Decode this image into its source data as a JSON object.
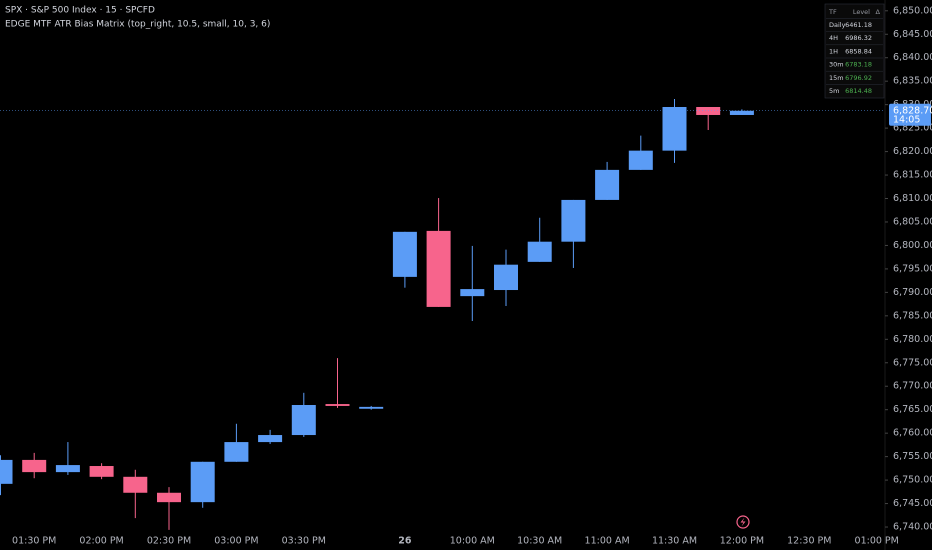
{
  "header": {
    "symbol_line": "SPX · S&P 500 Index · 15 · SPCFD",
    "indicator_line": "EDGE MTF ATR Bias Matrix (top_right, 10.5, small, 10, 3, 6)"
  },
  "chart_data": {
    "type": "candlestick",
    "categories": [
      null,
      "01:30 PM",
      null,
      "02:00 PM",
      null,
      "02:30 PM",
      null,
      "03:00 PM",
      null,
      "03:30 PM",
      null,
      null,
      "26",
      null,
      "10:00 AM",
      null,
      "10:30 AM",
      null,
      "11:00 AM",
      null,
      "11:30 AM",
      null,
      "12:00 PM",
      null,
      "12:30 PM",
      null,
      "01:00 PM"
    ],
    "open": [
      6749.2,
      6754.3,
      6751.7,
      6753.0,
      6750.7,
      6747.3,
      6745.3,
      6753.9,
      6758.1,
      6759.6,
      6766.2,
      6765.2,
      6793.3,
      6803.1,
      6789.2,
      6790.5,
      6796.5,
      6800.8,
      6809.7,
      6816.1,
      6820.2,
      6829.5,
      6827.8,
      null,
      null,
      null,
      null
    ],
    "high": [
      6755.3,
      6755.8,
      6758.1,
      6753.6,
      6752.2,
      6748.5,
      6753.9,
      6762.0,
      6760.7,
      6768.6,
      6776.0,
      6765.8,
      6802.9,
      6810.1,
      6799.9,
      6799.1,
      6805.9,
      6809.7,
      6817.8,
      6823.4,
      6831.2,
      6829.5,
      6829.0,
      null,
      null,
      null,
      null
    ],
    "low": [
      6746.8,
      6750.4,
      6751.1,
      6750.2,
      6741.9,
      6739.4,
      6744.1,
      6753.9,
      6757.7,
      6759.2,
      6765.4,
      6765.0,
      6791.0,
      6786.9,
      6783.9,
      6787.1,
      6796.5,
      6795.2,
      6809.7,
      6816.1,
      6817.6,
      6824.6,
      6827.8,
      null,
      null,
      null,
      null
    ],
    "close": [
      6754.3,
      6751.7,
      6753.2,
      6750.7,
      6747.3,
      6745.3,
      6753.9,
      6758.1,
      6759.6,
      6766.0,
      6765.8,
      6765.6,
      6802.9,
      6786.9,
      6790.7,
      6795.9,
      6800.8,
      6809.7,
      6816.1,
      6820.2,
      6829.5,
      6827.8,
      6828.7,
      null,
      null,
      null,
      null
    ],
    "up_color": "#5b9cf6",
    "down_color": "#f7648c",
    "ylim": [
      6738.3,
      6852.3
    ],
    "yticks": [
      {
        "value": 6740,
        "label": "6,740.00"
      },
      {
        "value": 6745,
        "label": "6,745.00"
      },
      {
        "value": 6750,
        "label": "6,750.00"
      },
      {
        "value": 6755,
        "label": "6,755.00"
      },
      {
        "value": 6760,
        "label": "6,760.00"
      },
      {
        "value": 6765,
        "label": "6,765.00"
      },
      {
        "value": 6770,
        "label": "6,770.00"
      },
      {
        "value": 6775,
        "label": "6,775.00"
      },
      {
        "value": 6780,
        "label": "6,780.00"
      },
      {
        "value": 6785,
        "label": "6,785.00"
      },
      {
        "value": 6790,
        "label": "6,790.00"
      },
      {
        "value": 6795,
        "label": "6,795.00"
      },
      {
        "value": 6800,
        "label": "6,800.00"
      },
      {
        "value": 6805,
        "label": "6,805.00"
      },
      {
        "value": 6810,
        "label": "6,810.00"
      },
      {
        "value": 6815,
        "label": "6,815.00"
      },
      {
        "value": 6820,
        "label": "6,820.00"
      },
      {
        "value": 6825,
        "label": "6,825.00"
      },
      {
        "value": 6830,
        "label": "6,830.00"
      },
      {
        "value": 6835,
        "label": "6,835.00"
      },
      {
        "value": 6840,
        "label": "6,840.00"
      },
      {
        "value": 6845,
        "label": "6,845.00"
      },
      {
        "value": 6850,
        "label": "6,850.00"
      }
    ],
    "last_price": {
      "value": 6828.7,
      "label": "6,828.70"
    },
    "countdown": "14:05"
  },
  "indicator_table": {
    "columns": [
      "TF",
      "Level",
      "Δ"
    ],
    "rows": [
      {
        "tf": "Daily",
        "level": "6461.18",
        "color": "#d1d4dc"
      },
      {
        "tf": "4H",
        "level": "6986.32",
        "color": "#d1d4dc"
      },
      {
        "tf": "1H",
        "level": "6858.84",
        "color": "#d1d4dc"
      },
      {
        "tf": "30m",
        "level": "6783.18",
        "color": "#4caf50"
      },
      {
        "tf": "15m",
        "level": "6796.92",
        "color": "#4caf50"
      },
      {
        "tf": "5m",
        "level": "6814.48",
        "color": "#4caf50"
      }
    ]
  }
}
